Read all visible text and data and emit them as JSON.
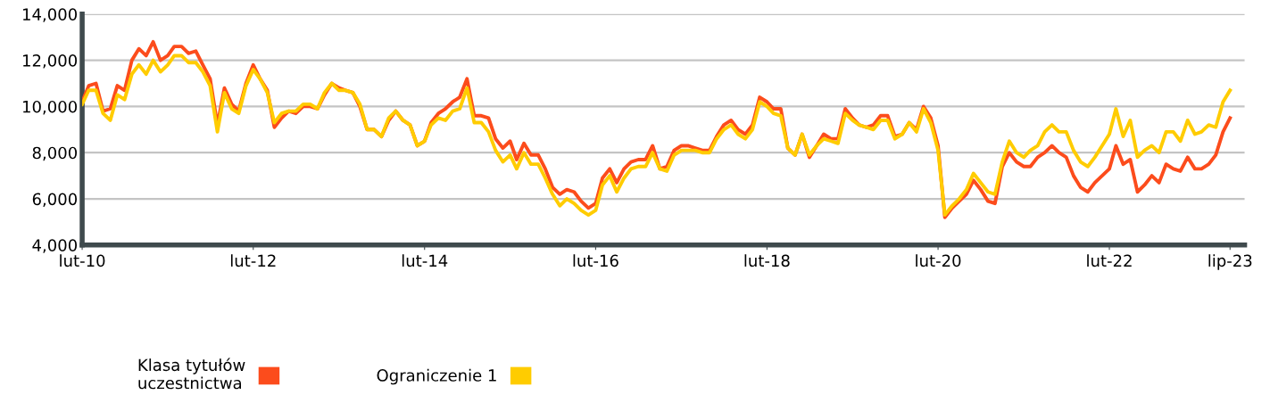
{
  "chart_data": {
    "type": "line",
    "x": [
      "2010-02",
      "2010-03",
      "2010-04",
      "2010-05",
      "2010-06",
      "2010-07",
      "2010-08",
      "2010-09",
      "2010-10",
      "2010-11",
      "2010-12",
      "2011-01",
      "2011-02",
      "2011-03",
      "2011-04",
      "2011-05",
      "2011-06",
      "2011-07",
      "2011-08",
      "2011-09",
      "2011-10",
      "2011-11",
      "2011-12",
      "2012-01",
      "2012-02",
      "2012-03",
      "2012-04",
      "2012-05",
      "2012-06",
      "2012-07",
      "2012-08",
      "2012-09",
      "2012-10",
      "2012-11",
      "2012-12",
      "2013-01",
      "2013-02",
      "2013-03",
      "2013-04",
      "2013-05",
      "2013-06",
      "2013-07",
      "2013-08",
      "2013-09",
      "2013-10",
      "2013-11",
      "2013-12",
      "2014-01",
      "2014-02",
      "2014-03",
      "2014-04",
      "2014-05",
      "2014-06",
      "2014-07",
      "2014-08",
      "2014-09",
      "2014-10",
      "2014-11",
      "2014-12",
      "2015-01",
      "2015-02",
      "2015-03",
      "2015-04",
      "2015-05",
      "2015-06",
      "2015-07",
      "2015-08",
      "2015-09",
      "2015-10",
      "2015-11",
      "2015-12",
      "2016-01",
      "2016-02",
      "2016-03",
      "2016-04",
      "2016-05",
      "2016-06",
      "2016-07",
      "2016-08",
      "2016-09",
      "2016-10",
      "2016-11",
      "2016-12",
      "2017-01",
      "2017-02",
      "2017-03",
      "2017-04",
      "2017-05",
      "2017-06",
      "2017-07",
      "2017-08",
      "2017-09",
      "2017-10",
      "2017-11",
      "2017-12",
      "2018-01",
      "2018-02",
      "2018-03",
      "2018-04",
      "2018-05",
      "2018-06",
      "2018-07",
      "2018-08",
      "2018-09",
      "2018-10",
      "2018-11",
      "2018-12",
      "2019-01",
      "2019-02",
      "2019-03",
      "2019-04",
      "2019-05",
      "2019-06",
      "2019-07",
      "2019-08",
      "2019-09",
      "2019-10",
      "2019-11",
      "2019-12",
      "2020-01",
      "2020-02",
      "2020-03",
      "2020-04",
      "2020-05",
      "2020-06",
      "2020-07",
      "2020-08",
      "2020-09",
      "2020-10",
      "2020-11",
      "2020-12",
      "2021-01",
      "2021-02",
      "2021-03",
      "2021-04",
      "2021-05",
      "2021-06",
      "2021-07",
      "2021-08",
      "2021-09",
      "2021-10",
      "2021-11",
      "2021-12",
      "2022-01",
      "2022-02",
      "2022-03",
      "2022-04",
      "2022-05",
      "2022-06",
      "2022-07",
      "2022-08",
      "2022-09",
      "2022-10",
      "2022-11",
      "2022-12",
      "2023-01",
      "2023-02",
      "2023-03",
      "2023-04",
      "2023-05",
      "2023-06",
      "2023-07"
    ],
    "xlim": [
      "2010-02",
      "2023-09"
    ],
    "xticks": [
      {
        "value": "2010-02",
        "label": "lut-10"
      },
      {
        "value": "2012-02",
        "label": "lut-12"
      },
      {
        "value": "2014-02",
        "label": "lut-14"
      },
      {
        "value": "2016-02",
        "label": "lut-16"
      },
      {
        "value": "2018-02",
        "label": "lut-18"
      },
      {
        "value": "2020-02",
        "label": "lut-20"
      },
      {
        "value": "2022-02",
        "label": "lut-22"
      },
      {
        "value": "2023-07",
        "label": "lip-23"
      }
    ],
    "ylim": [
      4000,
      14000
    ],
    "yticks": [
      {
        "value": 4000,
        "label": "4,000"
      },
      {
        "value": 6000,
        "label": "6,000"
      },
      {
        "value": 8000,
        "label": "8,000"
      },
      {
        "value": 10000,
        "label": "10,000"
      },
      {
        "value": 12000,
        "label": "12,000"
      },
      {
        "value": 14000,
        "label": "14,000"
      }
    ],
    "grid": "y",
    "legend": "bottom",
    "marker": "none",
    "line_style": "solid",
    "series": [
      {
        "name": "Klasa tytułów\nuczestnictwa",
        "color": "#fc4c1c",
        "values": [
          10200,
          10900,
          11000,
          9800,
          9900,
          10900,
          10700,
          12000,
          12500,
          12200,
          12800,
          12000,
          12200,
          12600,
          12600,
          12300,
          12400,
          11800,
          11200,
          9200,
          10800,
          10100,
          9800,
          11000,
          11800,
          11200,
          10700,
          9100,
          9500,
          9800,
          9700,
          10000,
          10000,
          9900,
          10500,
          11000,
          10800,
          10700,
          10600,
          10000,
          9000,
          9000,
          8700,
          9400,
          9800,
          9400,
          9200,
          8300,
          8500,
          9300,
          9700,
          9900,
          10200,
          10400,
          11200,
          9600,
          9600,
          9500,
          8600,
          8200,
          8500,
          7700,
          8400,
          7900,
          7900,
          7300,
          6500,
          6200,
          6400,
          6300,
          5900,
          5600,
          5800,
          6900,
          7300,
          6700,
          7300,
          7600,
          7700,
          7700,
          8300,
          7300,
          7400,
          8100,
          8300,
          8300,
          8200,
          8100,
          8100,
          8700,
          9200,
          9400,
          9000,
          8800,
          9200,
          10400,
          10200,
          9900,
          9900,
          8200,
          7900,
          8800,
          7800,
          8300,
          8800,
          8600,
          8600,
          9900,
          9500,
          9200,
          9100,
          9200,
          9600,
          9600,
          8700,
          8800,
          9300,
          9000,
          10000,
          9500,
          8300,
          5200,
          5600,
          5900,
          6200,
          6800,
          6400,
          5900,
          5800,
          7400,
          8000,
          7600,
          7400,
          7400,
          7800,
          8000,
          8300,
          8000,
          7800,
          7000,
          6500,
          6300,
          6700,
          7000,
          7300,
          8300,
          7500,
          7700,
          6300,
          6600,
          7000,
          6700,
          7500,
          7300,
          7200,
          7800,
          7300,
          7300,
          7500,
          7900,
          8900,
          9500
        ]
      },
      {
        "name": "Ograniczenie 1",
        "color": "#ffcc00",
        "values": [
          10100,
          10700,
          10700,
          9700,
          9400,
          10500,
          10300,
          11400,
          11800,
          11400,
          12000,
          11500,
          11800,
          12200,
          12200,
          11900,
          11900,
          11500,
          10900,
          8900,
          10600,
          9900,
          9700,
          10900,
          11600,
          11200,
          10600,
          9300,
          9700,
          9800,
          9800,
          10100,
          10100,
          9900,
          10600,
          11000,
          10700,
          10700,
          10600,
          10100,
          9000,
          9000,
          8700,
          9500,
          9800,
          9400,
          9200,
          8300,
          8500,
          9200,
          9500,
          9400,
          9800,
          9900,
          10800,
          9300,
          9300,
          8900,
          8100,
          7600,
          7900,
          7300,
          8000,
          7500,
          7500,
          6900,
          6200,
          5700,
          6000,
          5800,
          5500,
          5300,
          5500,
          6600,
          7000,
          6300,
          6900,
          7300,
          7400,
          7400,
          8000,
          7300,
          7200,
          7900,
          8100,
          8100,
          8100,
          8000,
          8000,
          8600,
          9000,
          9200,
          8800,
          8600,
          9000,
          10200,
          10000,
          9700,
          9600,
          8200,
          7900,
          8800,
          7900,
          8300,
          8600,
          8500,
          8400,
          9700,
          9400,
          9200,
          9100,
          9000,
          9400,
          9400,
          8600,
          8800,
          9300,
          8900,
          9900,
          9300,
          8100,
          5300,
          5700,
          6000,
          6400,
          7100,
          6700,
          6300,
          6200,
          7600,
          8500,
          8000,
          7800,
          8100,
          8300,
          8900,
          9200,
          8900,
          8900,
          8100,
          7600,
          7400,
          7800,
          8300,
          8800,
          9900,
          8700,
          9400,
          7800,
          8100,
          8300,
          8000,
          8900,
          8900,
          8500,
          9400,
          8800,
          8900,
          9200,
          9100,
          10200,
          10700
        ]
      }
    ]
  }
}
